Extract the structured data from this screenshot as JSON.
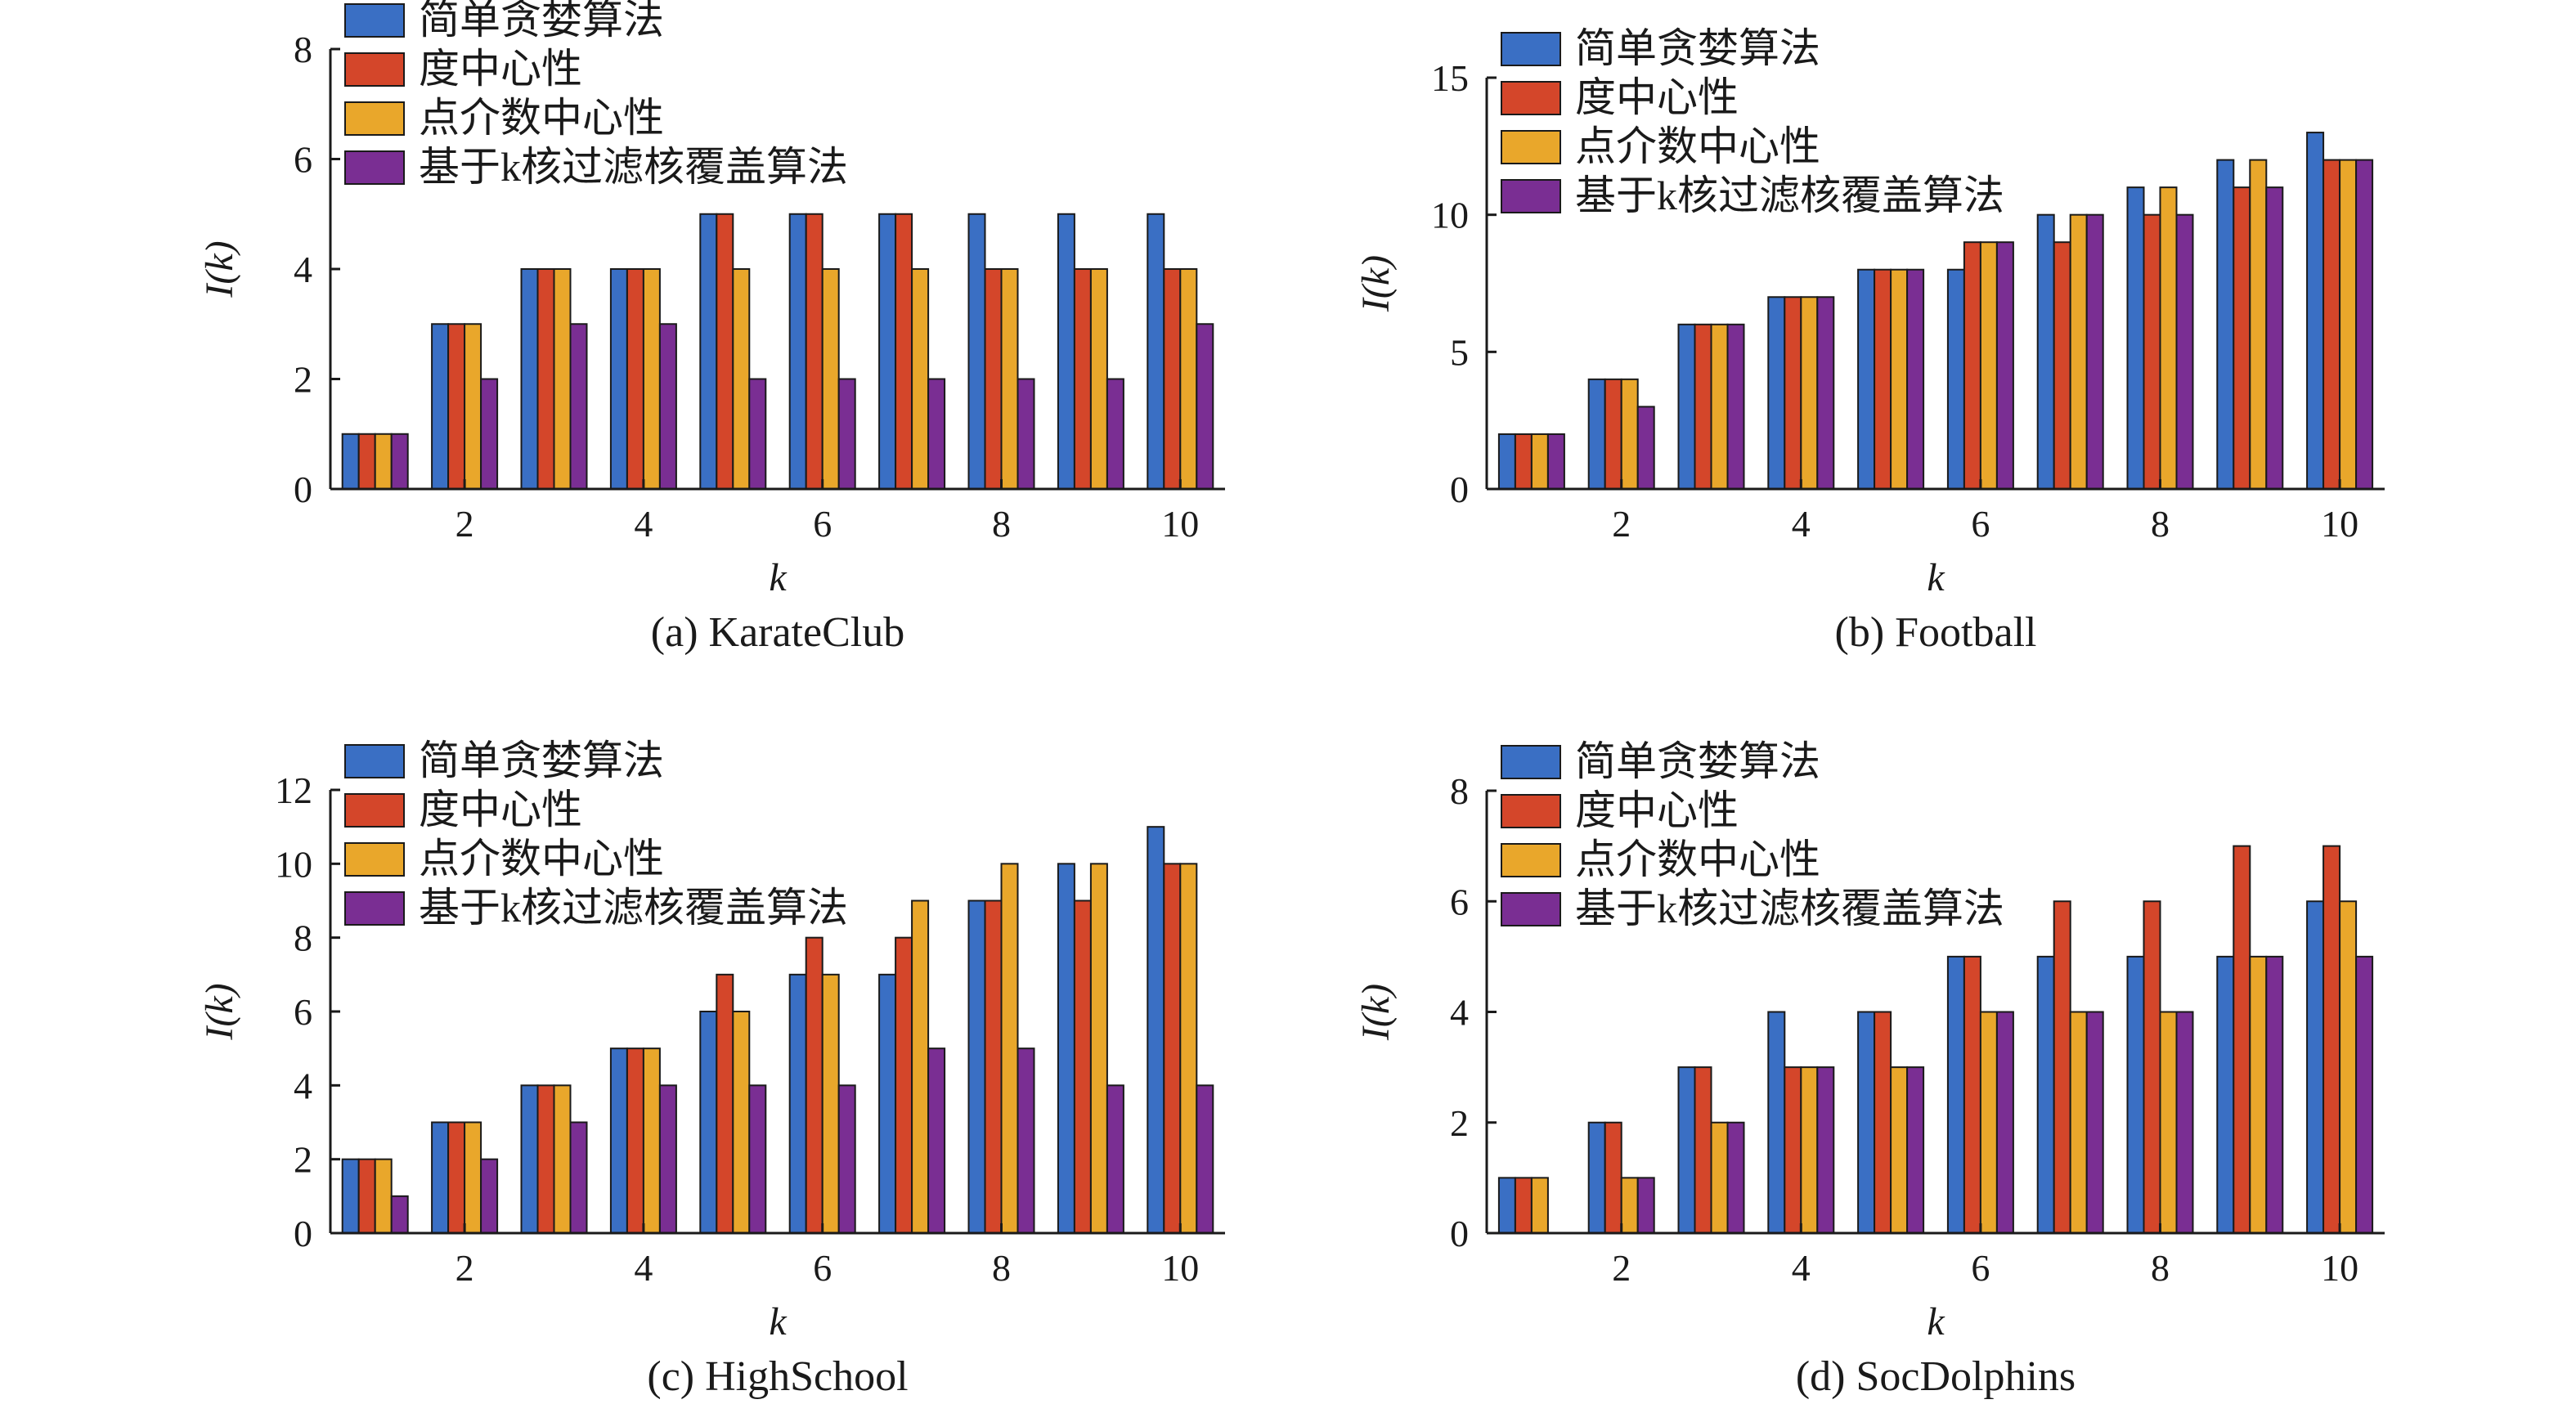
{
  "chart_data": [
    {
      "type": "bar",
      "caption": "(a) KarateClub",
      "xlabel": "k",
      "ylabel": "I(k)",
      "ylim": [
        0,
        8
      ],
      "yticks": [
        0,
        2,
        4,
        6,
        8
      ],
      "xticks": [
        2,
        4,
        6,
        8,
        10
      ],
      "categories": [
        1,
        2,
        3,
        4,
        5,
        6,
        7,
        8,
        9,
        10
      ],
      "series": [
        {
          "name": "简单贪婪算法",
          "values": [
            1,
            3,
            4,
            4,
            5,
            5,
            5,
            5,
            5,
            5
          ]
        },
        {
          "name": "度中心性",
          "values": [
            1,
            3,
            4,
            4,
            5,
            5,
            5,
            4,
            4,
            4
          ]
        },
        {
          "name": "点介数中心性",
          "values": [
            1,
            3,
            4,
            4,
            4,
            4,
            4,
            4,
            4,
            4
          ]
        },
        {
          "name": "基于k核过滤核覆盖算法",
          "values": [
            1,
            2,
            3,
            3,
            2,
            2,
            2,
            2,
            2,
            3
          ]
        }
      ]
    },
    {
      "type": "bar",
      "caption": "(b) Football",
      "xlabel": "k",
      "ylabel": "I(k)",
      "ylim": [
        0,
        15
      ],
      "yticks": [
        0,
        5,
        10,
        15
      ],
      "xticks": [
        2,
        4,
        6,
        8,
        10
      ],
      "categories": [
        1,
        2,
        3,
        4,
        5,
        6,
        7,
        8,
        9,
        10
      ],
      "series": [
        {
          "name": "简单贪婪算法",
          "values": [
            2,
            4,
            6,
            7,
            8,
            8,
            10,
            11,
            12,
            13
          ]
        },
        {
          "name": "度中心性",
          "values": [
            2,
            4,
            6,
            7,
            8,
            9,
            9,
            10,
            11,
            12
          ]
        },
        {
          "name": "点介数中心性",
          "values": [
            2,
            4,
            6,
            7,
            8,
            9,
            10,
            11,
            12,
            12
          ]
        },
        {
          "name": "基于k核过滤核覆盖算法",
          "values": [
            2,
            3,
            6,
            7,
            8,
            9,
            10,
            10,
            11,
            12
          ]
        }
      ]
    },
    {
      "type": "bar",
      "caption": "(c) HighSchool",
      "xlabel": "k",
      "ylabel": "I(k)",
      "ylim": [
        0,
        12
      ],
      "yticks": [
        0,
        2,
        4,
        6,
        8,
        10,
        12
      ],
      "xticks": [
        2,
        4,
        6,
        8,
        10
      ],
      "categories": [
        1,
        2,
        3,
        4,
        5,
        6,
        7,
        8,
        9,
        10
      ],
      "series": [
        {
          "name": "简单贪婪算法",
          "values": [
            2,
            3,
            4,
            5,
            6,
            7,
            7,
            9,
            10,
            11
          ]
        },
        {
          "name": "度中心性",
          "values": [
            2,
            3,
            4,
            5,
            7,
            8,
            8,
            9,
            9,
            10
          ]
        },
        {
          "name": "点介数中心性",
          "values": [
            2,
            3,
            4,
            5,
            6,
            7,
            9,
            10,
            10,
            10
          ]
        },
        {
          "name": "基于k核过滤核覆盖算法",
          "values": [
            1,
            2,
            3,
            4,
            4,
            4,
            5,
            5,
            4,
            4
          ]
        }
      ]
    },
    {
      "type": "bar",
      "caption": "(d) SocDolphins",
      "xlabel": "k",
      "ylabel": "I(k)",
      "ylim": [
        0,
        8
      ],
      "yticks": [
        0,
        2,
        4,
        6,
        8
      ],
      "xticks": [
        2,
        4,
        6,
        8,
        10
      ],
      "categories": [
        1,
        2,
        3,
        4,
        5,
        6,
        7,
        8,
        9,
        10
      ],
      "series": [
        {
          "name": "简单贪婪算法",
          "values": [
            1,
            2,
            3,
            4,
            4,
            5,
            5,
            5,
            5,
            6
          ]
        },
        {
          "name": "度中心性",
          "values": [
            1,
            2,
            3,
            3,
            4,
            5,
            6,
            6,
            7,
            7
          ]
        },
        {
          "name": "点介数中心性",
          "values": [
            1,
            1,
            2,
            3,
            3,
            4,
            4,
            4,
            5,
            6
          ]
        },
        {
          "name": "基于k核过滤核覆盖算法",
          "values": [
            0,
            1,
            2,
            3,
            3,
            4,
            4,
            4,
            5,
            5
          ]
        }
      ]
    }
  ],
  "colors": [
    "#3a6fc4",
    "#d4462a",
    "#e9a72b",
    "#7a2e93"
  ]
}
